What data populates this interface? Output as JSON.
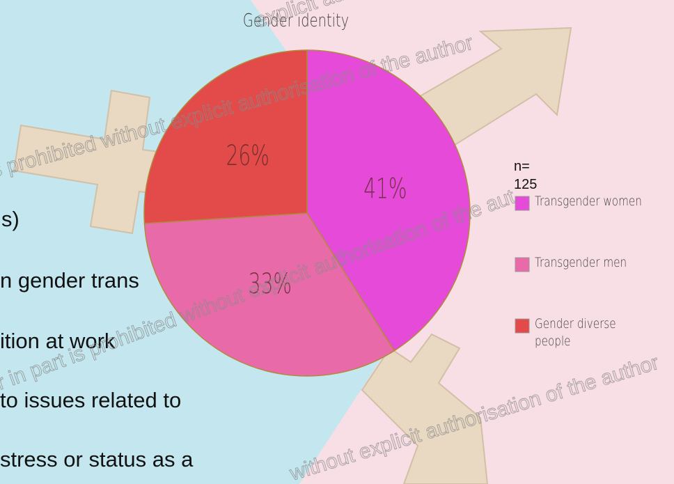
{
  "chart_data": {
    "type": "pie",
    "title": "Gender identity",
    "categories": [
      "Transgender women",
      "Transgender men",
      "Gender diverse people"
    ],
    "values": [
      41,
      33,
      26
    ],
    "value_labels": [
      "41%",
      "33%",
      "26%"
    ],
    "colors": [
      "#e64ad8",
      "#e96aa8",
      "#e34a4a"
    ],
    "annotation": "n= 125",
    "legend": "right"
  },
  "slide": {
    "text_lines": [
      "s)",
      "n gender trans",
      "ition at work",
      "to issues related to",
      "stress or status as a"
    ],
    "watermarks": [
      "s prohibited without explicit authorisation of the author",
      "r in part is prohibited without explicit authorisation of the aut",
      "without explicit authorisation of the author",
      "explicit authorisati"
    ]
  }
}
